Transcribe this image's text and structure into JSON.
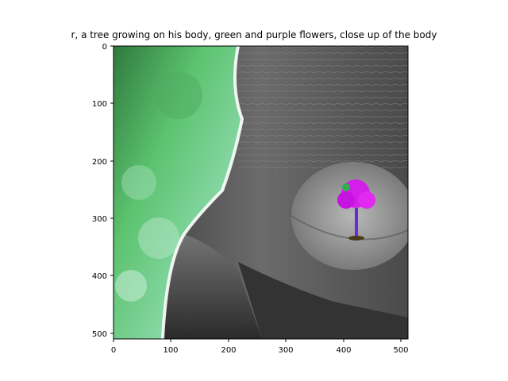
{
  "figure": {
    "title": "r,  a tree growing on his body, green and purple flowers, close up of the body"
  },
  "image_plot": {
    "description_type": "matplotlib imshow of generated image",
    "x_ticks": [
      "0",
      "100",
      "200",
      "300",
      "400",
      "500"
    ],
    "y_ticks": [
      "0",
      "100",
      "200",
      "300",
      "400",
      "500"
    ],
    "x_range": [
      0,
      512
    ],
    "y_range": [
      0,
      512
    ]
  }
}
